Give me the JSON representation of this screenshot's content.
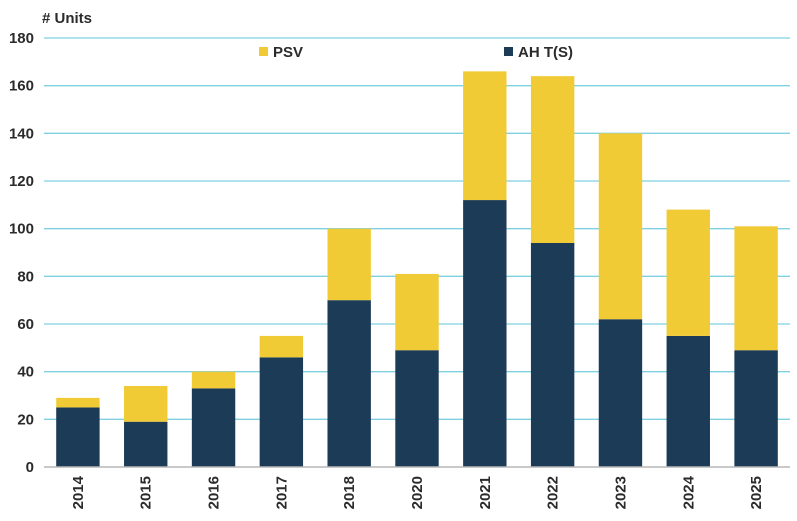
{
  "chart_data": {
    "type": "bar",
    "stacked": true,
    "title": "",
    "ylabel": "# Units",
    "xlabel": "",
    "ylim": [
      0,
      180
    ],
    "yticks": [
      0,
      20,
      40,
      60,
      80,
      100,
      120,
      140,
      160,
      180
    ],
    "grid": true,
    "legend_position": "top",
    "categories": [
      "2014",
      "2015",
      "2016",
      "2017",
      "2018",
      "2020",
      "2021",
      "2022",
      "2023",
      "2024",
      "2025"
    ],
    "series": [
      {
        "name": "AH T(S)",
        "color": "#1c3b57",
        "values": [
          25,
          19,
          33,
          46,
          70,
          49,
          112,
          94,
          62,
          55,
          49
        ]
      },
      {
        "name": "PSV",
        "color": "#f0cb35",
        "values": [
          4,
          15,
          7,
          9,
          30,
          32,
          54,
          70,
          78,
          53,
          52
        ]
      }
    ],
    "legend_order": [
      "PSV",
      "AH T(S)"
    ],
    "gridline_color": "#7fd1e1"
  }
}
